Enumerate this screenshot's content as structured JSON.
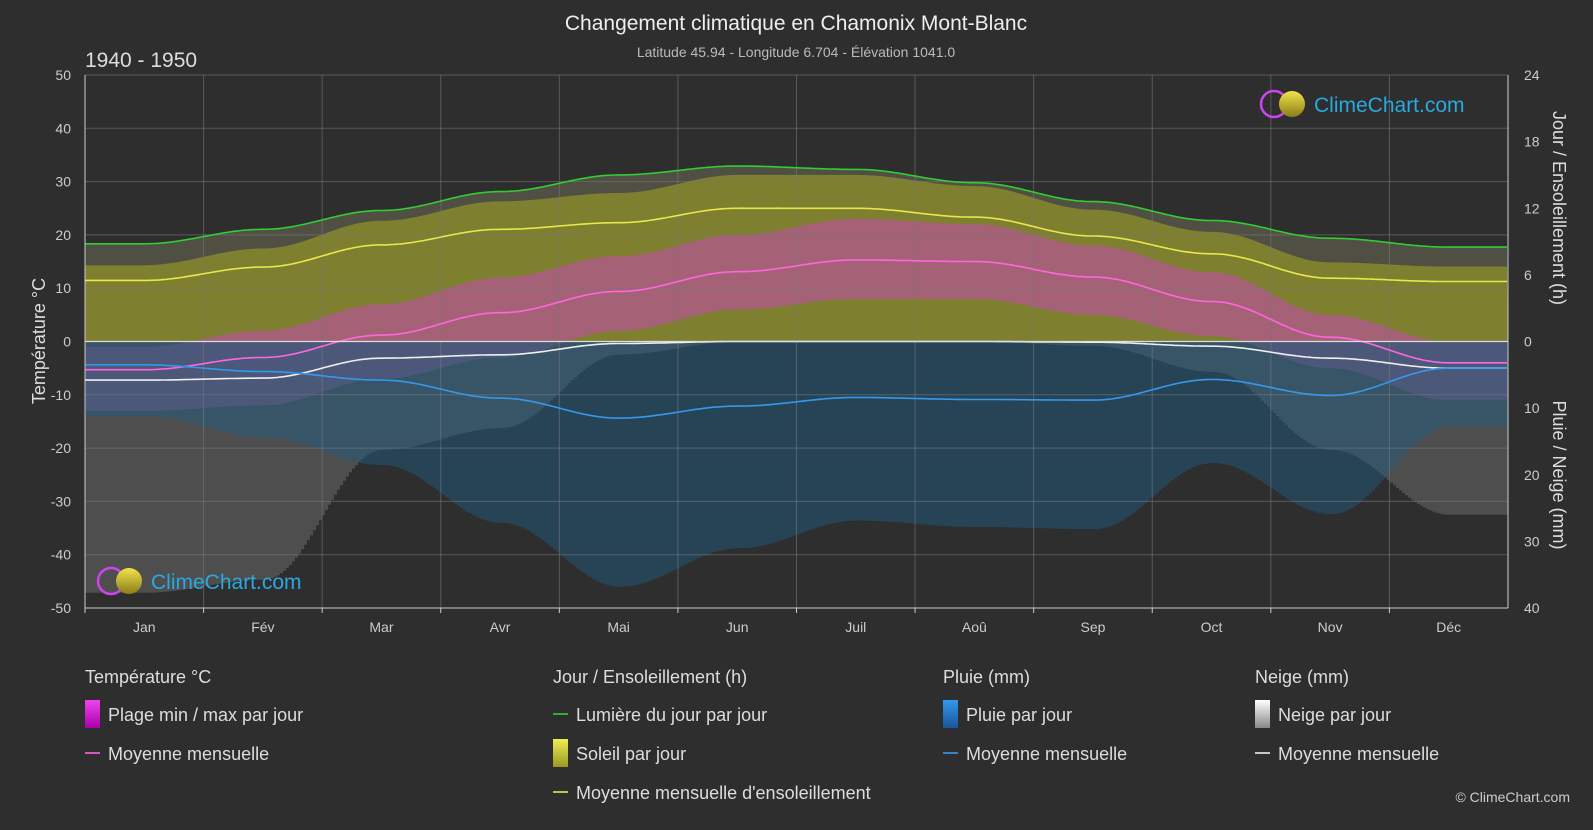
{
  "title": "Changement climatique en Chamonix Mont-Blanc",
  "subtitle": "Latitude 45.94 - Longitude 6.704 - Élévation 1041.0",
  "period": "1940 - 1950",
  "brand": "ClimeChart.com",
  "copyright": "© ClimeChart.com",
  "chart_data": {
    "type": "area",
    "months": [
      "Jan",
      "Fév",
      "Mar",
      "Avr",
      "Mai",
      "Jun",
      "Juil",
      "Aoû",
      "Sep",
      "Oct",
      "Nov",
      "Déc"
    ],
    "y_left": {
      "label": "Température °C",
      "range": [
        -50,
        50
      ],
      "ticks": [
        50,
        40,
        30,
        20,
        10,
        0,
        -10,
        -20,
        -30,
        -40,
        -50
      ]
    },
    "y_right_top": {
      "label": "Jour / Ensoleillement (h)",
      "range": [
        0,
        24
      ],
      "ticks": [
        24,
        18,
        12,
        6,
        0
      ]
    },
    "y_right_bottom": {
      "label": "Pluie / Neige (mm)",
      "range": [
        0,
        40
      ],
      "ticks": [
        10,
        20,
        30,
        40
      ]
    },
    "grid": true,
    "series": [
      {
        "name": "Lumière du jour par jour",
        "unit": "h",
        "color": "#33cc33",
        "values": [
          8.8,
          10.1,
          11.8,
          13.5,
          15.0,
          15.8,
          15.5,
          14.3,
          12.6,
          10.9,
          9.3,
          8.5
        ]
      },
      {
        "name": "Moyenne mensuelle d'ensoleillement",
        "unit": "h",
        "color": "#e8e84a",
        "values": [
          5.5,
          6.7,
          8.7,
          10.1,
          10.7,
          12.0,
          12.0,
          11.2,
          9.5,
          7.9,
          5.7,
          5.4
        ]
      },
      {
        "name": "Moyenne mensuelle",
        "group": "Température °C",
        "unit": "°C",
        "color": "#ff66dd",
        "values": [
          -5.3,
          -3.0,
          1.2,
          5.4,
          9.4,
          13.1,
          15.3,
          15.0,
          12.1,
          7.5,
          0.8,
          -4.0
        ]
      },
      {
        "name": "Moyenne mensuelle",
        "group": "Pluie (mm)",
        "unit": "mm",
        "color": "#3399ee",
        "values": [
          3.5,
          4.5,
          5.8,
          8.5,
          11.5,
          9.7,
          8.4,
          8.7,
          8.8,
          5.7,
          8.1,
          4.0
        ]
      },
      {
        "name": "Moyenne mensuelle",
        "group": "Neige (mm)",
        "unit": "mm",
        "color": "#eeeeee",
        "values": [
          5.8,
          5.5,
          2.5,
          2.0,
          0.3,
          0.0,
          0.0,
          0.0,
          0.1,
          0.7,
          2.5,
          4.0
        ]
      },
      {
        "name": "Plage min / max par jour",
        "unit": "°C",
        "color": "#dd22dd",
        "min": [
          -13,
          -12,
          -7,
          -3,
          2,
          6,
          8,
          8,
          5,
          1,
          -5,
          -11
        ],
        "max": [
          -1,
          2,
          7,
          12,
          16,
          20,
          23,
          22,
          18,
          13,
          5,
          0
        ]
      }
    ]
  },
  "legend": {
    "groups": [
      {
        "title": "Température °C",
        "items": [
          {
            "label": "Plage min / max par jour",
            "kind": "swatch",
            "color": "#dd22dd"
          },
          {
            "label": "Moyenne mensuelle",
            "kind": "line",
            "color": "#ff66dd"
          }
        ]
      },
      {
        "title": "Jour / Ensoleillement (h)",
        "items": [
          {
            "label": "Lumière du jour par jour",
            "kind": "line",
            "color": "#33cc33"
          },
          {
            "label": "Soleil par jour",
            "kind": "swatch",
            "color": "#d8d83a"
          },
          {
            "label": "Moyenne mensuelle d'ensoleillement",
            "kind": "line",
            "color": "#e8e84a"
          }
        ]
      },
      {
        "title": "Pluie (mm)",
        "items": [
          {
            "label": "Pluie par jour",
            "kind": "swatch",
            "color": "#2a88dd"
          },
          {
            "label": "Moyenne mensuelle",
            "kind": "line",
            "color": "#3399ee"
          }
        ]
      },
      {
        "title": "Neige (mm)",
        "items": [
          {
            "label": "Neige par jour",
            "kind": "swatch",
            "color": "#dddddd"
          },
          {
            "label": "Moyenne mensuelle",
            "kind": "line",
            "color": "#eeeeee"
          }
        ]
      }
    ]
  }
}
